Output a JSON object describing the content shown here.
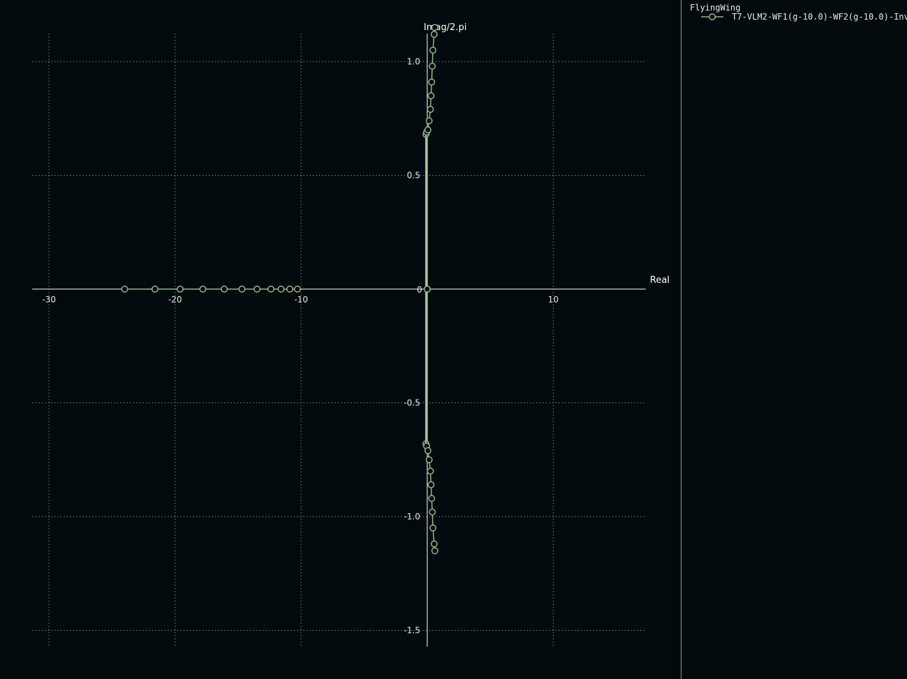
{
  "chart_data": {
    "type": "scatter",
    "title": "",
    "xlabel": "Real",
    "ylabel": "Imag/2.pi",
    "xlim": [
      -31.5,
      17.5
    ],
    "ylim": [
      -1.58,
      1.13
    ],
    "xticks": [
      -30,
      -20,
      -10,
      0,
      10
    ],
    "yticks": [
      -1.5,
      -1.0,
      -0.5,
      0,
      0.5,
      1.0
    ],
    "xtick_labels": [
      "-30",
      "-20",
      "-10",
      "0",
      "10"
    ],
    "ytick_labels": [
      "-1.5",
      "-1.0",
      "-0.5",
      "0",
      "0.5",
      "1.0"
    ],
    "grid": true,
    "legend_position": "right-panel",
    "colors": {
      "background": "#030a0e",
      "series": "#8fb88a",
      "axis": "#ffffff",
      "grid": "#808080"
    },
    "series": [
      {
        "name": "T7-VLM2-WF1(g-10.0)-WF2(g-10.0)-Inv",
        "branches": [
          {
            "x": [
              -24.0,
              -21.6,
              -19.6,
              -17.8,
              -16.1,
              -14.7,
              -13.5,
              -12.4,
              -11.6,
              -10.9,
              -10.3
            ],
            "y": [
              0,
              0,
              0,
              0,
              0,
              0,
              0,
              0,
              0,
              0,
              0
            ]
          },
          {
            "x": [
              -0.1,
              -0.05,
              0.05,
              0.15,
              0.25,
              0.3,
              0.35,
              0.4,
              0.45,
              0.55,
              0.6
            ],
            "y": [
              0.68,
              0.69,
              0.7,
              0.74,
              0.79,
              0.85,
              0.91,
              0.98,
              1.05,
              1.12,
              1.15
            ]
          },
          {
            "x": [
              -0.1,
              -0.05,
              0.05,
              0.15,
              0.25,
              0.3,
              0.35,
              0.4,
              0.45,
              0.55,
              0.6
            ],
            "y": [
              -0.68,
              -0.69,
              -0.71,
              -0.75,
              -0.8,
              -0.86,
              -0.92,
              -0.98,
              -1.05,
              -1.12,
              -1.15
            ]
          },
          {
            "x": [
              -0.1,
              -0.1
            ],
            "y": [
              -0.68,
              0.68
            ]
          },
          {
            "x": [
              0.0,
              0.0
            ],
            "y": [
              0,
              0
            ]
          }
        ]
      }
    ]
  },
  "legend": {
    "title": "FlyingWing",
    "entries": [
      {
        "label": "T7-VLM2-WF1(g-10.0)-WF2(g-10.0)-Inv"
      }
    ]
  }
}
